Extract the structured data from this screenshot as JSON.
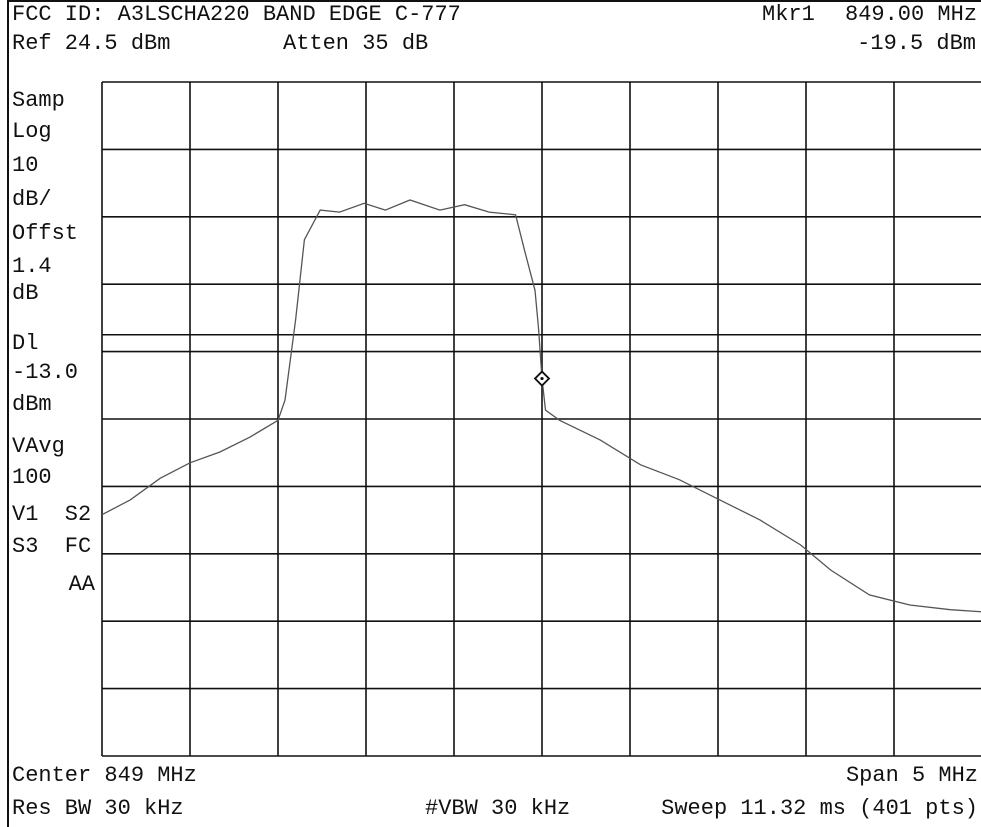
{
  "chart_data": {
    "type": "line",
    "title": "FCC ID: A3LSCHA220 BAND EDGE C-777",
    "ref_level": "Ref 24.5 dBm",
    "attenuation": "Atten 35 dB",
    "marker": {
      "label": "Mkr1",
      "x": 849,
      "x_label": "849.00 MHz",
      "y": -19.5,
      "y_label": "-19.5 dBm"
    },
    "side_panel": [
      "Samp",
      "Log",
      "10",
      "dB/",
      "Offst",
      "1.4",
      "dB",
      "Dl",
      "dBm",
      "VAvg",
      "100",
      "V1  S2",
      "S3  FC",
      "AA"
    ],
    "display_line": {
      "value": -13,
      "label": "-13.0"
    },
    "center": "Center 849 MHz",
    "span": "Span 5 MHz",
    "res_bw": "Res BW 30 kHz",
    "vbw": "#VBW 30 kHz",
    "sweep": "Sweep 11.32 ms (401 pts)",
    "xlim": [
      846.5,
      851.5
    ],
    "ylim": [
      -75.5,
      24.5
    ],
    "grid": true,
    "color": "#555555",
    "x": [
      846.5,
      846.66,
      846.83,
      847.0,
      847.17,
      847.34,
      847.5,
      847.54,
      847.6,
      847.65,
      847.74,
      847.85,
      847.99,
      848.11,
      848.25,
      848.42,
      848.56,
      848.7,
      848.85,
      848.9,
      848.96,
      848.98,
      849.0,
      849.02,
      849.1,
      849.33,
      849.56,
      849.78,
      850.01,
      850.24,
      850.47,
      850.64,
      850.86,
      851.09,
      851.32,
      851.5
    ],
    "values": [
      -39.7,
      -37.5,
      -34.3,
      -32.0,
      -30.4,
      -28.2,
      -25.7,
      -22.7,
      -10.8,
      1.1,
      5.5,
      5.2,
      6.5,
      5.5,
      7.0,
      5.5,
      6.3,
      5.2,
      4.8,
      -0.4,
      -6.4,
      -12.0,
      -19.5,
      -24.2,
      -25.7,
      -28.6,
      -32.3,
      -34.5,
      -37.5,
      -40.5,
      -44.2,
      -47.9,
      -51.6,
      -53.1,
      -53.8,
      -54.1
    ]
  }
}
